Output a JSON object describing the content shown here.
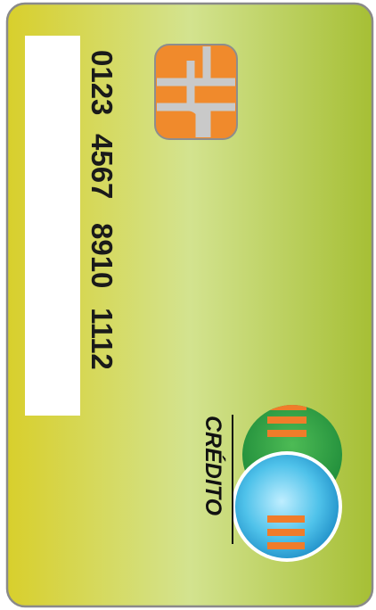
{
  "card": {
    "number_groups": [
      "0123",
      "4567",
      "8910",
      "1112"
    ],
    "brand": "CRÉDITO"
  }
}
